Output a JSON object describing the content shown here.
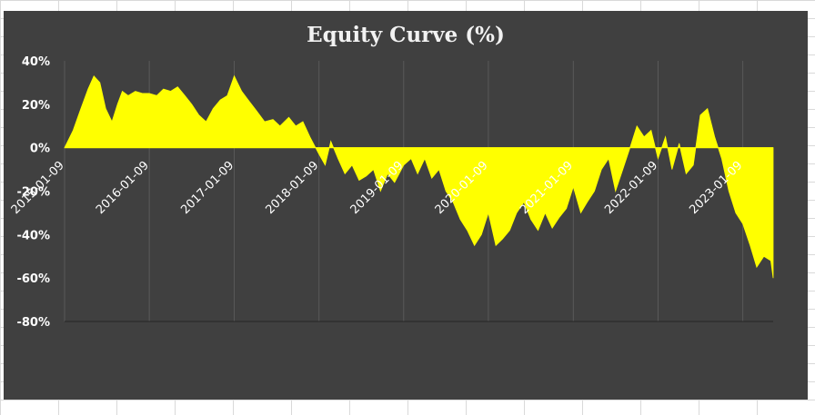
{
  "chart_data": {
    "type": "area",
    "title": "Equity Curve (%)",
    "xlabel": "",
    "ylabel": "",
    "ylim": [
      -80,
      40
    ],
    "yticks": [
      40,
      20,
      0,
      -20,
      -40,
      -60,
      -80
    ],
    "ytick_labels": [
      "40%",
      "20%",
      "0%",
      "-20%",
      "-40%",
      "-60%",
      "-80%"
    ],
    "xticks": [
      "2015-01-09",
      "2016-01-09",
      "2017-01-09",
      "2018-01-09",
      "2019-01-09",
      "2020-01-09",
      "2021-01-09",
      "2022-01-09",
      "2023-01-09"
    ],
    "xlim": [
      "2015-01-09",
      "2023-05-20"
    ],
    "grid": "vertical",
    "series": [
      {
        "color": "#ffff00",
        "x": [
          "2015-01-09",
          "2015-02-15",
          "2015-03-20",
          "2015-04-20",
          "2015-05-15",
          "2015-06-10",
          "2015-07-05",
          "2015-08-01",
          "2015-08-25",
          "2015-09-15",
          "2015-10-10",
          "2015-11-10",
          "2015-12-10",
          "2016-01-09",
          "2016-02-10",
          "2016-03-10",
          "2016-04-10",
          "2016-05-10",
          "2016-06-10",
          "2016-07-10",
          "2016-08-10",
          "2016-09-10",
          "2016-10-10",
          "2016-11-10",
          "2016-12-10",
          "2017-01-09",
          "2017-02-10",
          "2017-03-10",
          "2017-04-15",
          "2017-05-20",
          "2017-06-25",
          "2017-07-25",
          "2017-09-01",
          "2017-10-01",
          "2017-11-01",
          "2017-12-01",
          "2018-01-09",
          "2018-02-05",
          "2018-03-01",
          "2018-04-01",
          "2018-05-01",
          "2018-06-01",
          "2018-07-01",
          "2018-08-01",
          "2018-09-01",
          "2018-10-01",
          "2018-11-01",
          "2018-12-01",
          "2019-01-09",
          "2019-02-10",
          "2019-03-10",
          "2019-04-10",
          "2019-05-10",
          "2019-06-10",
          "2019-07-10",
          "2019-08-10",
          "2019-09-10",
          "2019-10-10",
          "2019-11-10",
          "2019-12-10",
          "2020-01-09",
          "2020-02-10",
          "2020-03-10",
          "2020-04-10",
          "2020-05-10",
          "2020-06-10",
          "2020-07-10",
          "2020-08-10",
          "2020-09-10",
          "2020-10-10",
          "2020-11-10",
          "2020-12-10",
          "2021-01-09",
          "2021-02-10",
          "2021-03-10",
          "2021-04-10",
          "2021-05-10",
          "2021-06-10",
          "2021-07-10",
          "2021-08-10",
          "2021-09-10",
          "2021-10-10",
          "2021-11-10",
          "2021-12-10",
          "2022-01-09",
          "2022-02-10",
          "2022-03-10",
          "2022-04-10",
          "2022-05-10",
          "2022-06-10",
          "2022-07-10",
          "2022-08-10",
          "2022-09-10",
          "2022-10-10",
          "2022-11-10",
          "2022-12-10",
          "2023-01-09",
          "2023-02-10",
          "2023-03-10",
          "2023-04-10",
          "2023-05-10",
          "2023-05-20"
        ],
        "y": [
          0,
          8,
          18,
          27,
          33,
          30,
          18,
          12,
          20,
          26,
          24,
          26,
          25,
          25,
          24,
          27,
          26,
          28,
          24,
          20,
          15,
          12,
          18,
          22,
          24,
          33,
          26,
          22,
          17,
          12,
          13,
          10,
          14,
          10,
          12,
          5,
          -3,
          -8,
          3,
          -5,
          -12,
          -8,
          -15,
          -13,
          -10,
          -20,
          -12,
          -16,
          -8,
          -5,
          -12,
          -5,
          -14,
          -10,
          -20,
          -25,
          -33,
          -38,
          -45,
          -40,
          -30,
          -45,
          -42,
          -38,
          -30,
          -25,
          -33,
          -38,
          -30,
          -37,
          -32,
          -28,
          -18,
          -30,
          -25,
          -20,
          -10,
          -5,
          -20,
          -10,
          0,
          10,
          5,
          8,
          -5,
          5,
          -10,
          2,
          -12,
          -8,
          15,
          18,
          5,
          -5,
          -20,
          -30,
          -35,
          -45,
          -55,
          -50,
          -52,
          -60
        ]
      }
    ]
  }
}
